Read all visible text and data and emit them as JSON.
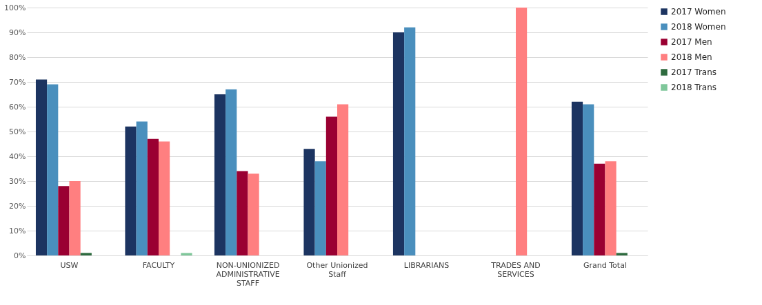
{
  "chart_data": {
    "type": "bar",
    "categories": [
      "USW",
      "FACULTY",
      "NON-UNIONIZED ADMINISTRATIVE STAFF",
      "Other Unionized Staff",
      "LIBRARIANS",
      "TRADES AND SERVICES",
      "Grand Total"
    ],
    "series": [
      {
        "name": "2017 Women",
        "color": "#1c3461",
        "values": [
          71,
          52,
          65,
          43,
          90,
          0,
          62
        ]
      },
      {
        "name": "2018 Women",
        "color": "#4a8fbd",
        "values": [
          69,
          54,
          67,
          38,
          92,
          0,
          61
        ]
      },
      {
        "name": "2017 Men",
        "color": "#9a0032",
        "values": [
          28,
          47,
          34,
          56,
          0,
          0,
          37
        ]
      },
      {
        "name": "2018 Men",
        "color": "#ff7f80",
        "values": [
          30,
          46,
          33,
          61,
          0,
          100,
          38
        ]
      },
      {
        "name": "2017 Trans",
        "color": "#2e6b3f",
        "values": [
          1,
          0,
          0,
          0,
          0,
          0,
          1
        ]
      },
      {
        "name": "2018 Trans",
        "color": "#7fc79a",
        "values": [
          0,
          1,
          0,
          0,
          0,
          0,
          0
        ]
      }
    ],
    "ylim": [
      0,
      100
    ],
    "yticks": [
      {
        "value": 0,
        "label": "0%"
      },
      {
        "value": 10,
        "label": "10%"
      },
      {
        "value": 20,
        "label": "20%"
      },
      {
        "value": 30,
        "label": "30%"
      },
      {
        "value": 40,
        "label": "40%"
      },
      {
        "value": 50,
        "label": "50%"
      },
      {
        "value": 60,
        "label": "60%"
      },
      {
        "value": 70,
        "label": "70%"
      },
      {
        "value": 80,
        "label": "80%"
      },
      {
        "value": 90,
        "label": "90%"
      },
      {
        "value": 100,
        "label": "100%"
      }
    ],
    "grid": "y",
    "legend": "right"
  }
}
